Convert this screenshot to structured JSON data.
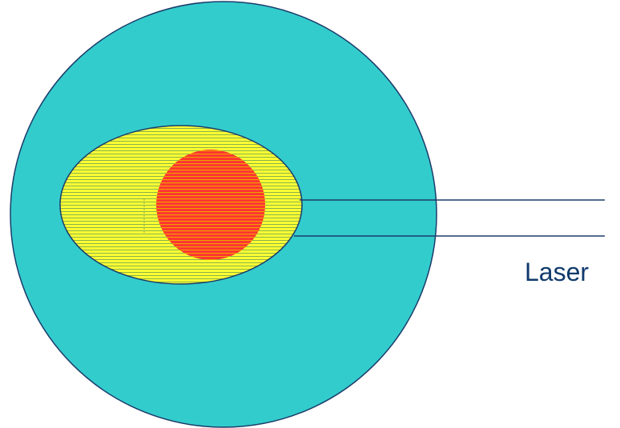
{
  "diagram": {
    "labels": {
      "laser": "Laser"
    },
    "colors": {
      "background": "#ffffff",
      "outer_circle_fill": "#33cccc",
      "outline": "#1b3d6b",
      "ellipse_fill": "#ffff33",
      "ellipse_hatch": "#8ab04a",
      "inner_spot_fill": "#ff3333",
      "inner_spot_hatch": "#f0a000",
      "laser_line": "#1b3d6b",
      "label_text": "#0f3a6b"
    }
  }
}
